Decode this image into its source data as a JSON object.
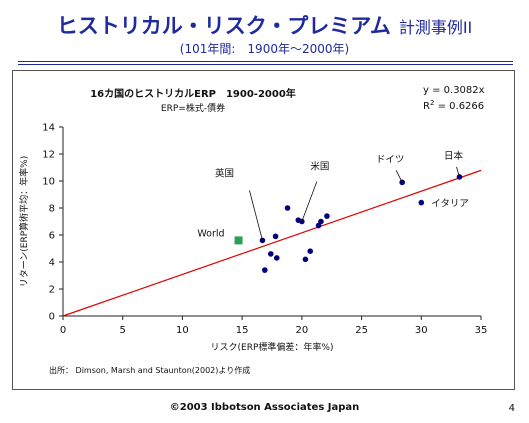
{
  "slide": {
    "title": "ヒストリカル・リスク・プレミアム",
    "title_sub": "計測事例II",
    "subtitle": "(101年間:　1900年～2000年)",
    "footer": "©2003 Ibbotson Associates Japan",
    "page_number": "4",
    "source_note": "出所： Dimson, Marsh and Staunton(2002)より作成"
  },
  "colors": {
    "title": "#1f2a9e",
    "points": "#00007f",
    "world": "#2e9e57",
    "regression": "#e00000"
  },
  "chart_data": {
    "type": "scatter",
    "title": "16カ国のヒストリカルERP　1900-2000年",
    "subtitle": "ERP=株式-債券",
    "xlabel": "リスク(ERP標準偏差：年率%)",
    "ylabel": "リターン(ERP算術平均：年率%)",
    "xlim": [
      0,
      35
    ],
    "ylim": [
      0,
      14
    ],
    "xticks": [
      "0",
      "5",
      "10",
      "15",
      "20",
      "25",
      "30",
      "35"
    ],
    "yticks": [
      "0",
      "2",
      "4",
      "6",
      "8",
      "10",
      "12",
      "14"
    ],
    "grid": false,
    "equation": "y = 0.3082x",
    "r2_label": "R",
    "r2_value": " = 0.6266",
    "regression_slope": 0.3082,
    "points": [
      {
        "x": 16.7,
        "y": 5.6
      },
      {
        "x": 16.9,
        "y": 3.4
      },
      {
        "x": 17.4,
        "y": 4.6
      },
      {
        "x": 17.9,
        "y": 4.3
      },
      {
        "x": 17.8,
        "y": 5.9
      },
      {
        "x": 18.8,
        "y": 8.0
      },
      {
        "x": 19.7,
        "y": 7.1
      },
      {
        "x": 20.0,
        "y": 7.0
      },
      {
        "x": 20.3,
        "y": 4.2
      },
      {
        "x": 20.7,
        "y": 4.8
      },
      {
        "x": 21.4,
        "y": 6.7
      },
      {
        "x": 21.6,
        "y": 7.0
      },
      {
        "x": 22.1,
        "y": 7.4
      },
      {
        "x": 28.4,
        "y": 9.9
      },
      {
        "x": 30.0,
        "y": 8.4
      },
      {
        "x": 33.2,
        "y": 10.3
      }
    ],
    "world_point": {
      "x": 14.7,
      "y": 5.6
    },
    "labels": [
      {
        "text": "英国",
        "x": 16.7,
        "y": 5.6
      },
      {
        "text": "米国",
        "x": 20.0,
        "y": 7.0
      },
      {
        "text": "ドイツ",
        "x": 28.4,
        "y": 9.9
      },
      {
        "text": "日本",
        "x": 33.2,
        "y": 10.3
      },
      {
        "text": "イタリア",
        "x": 30.0,
        "y": 8.4
      },
      {
        "text": "World",
        "x": 14.7,
        "y": 5.6
      }
    ]
  }
}
